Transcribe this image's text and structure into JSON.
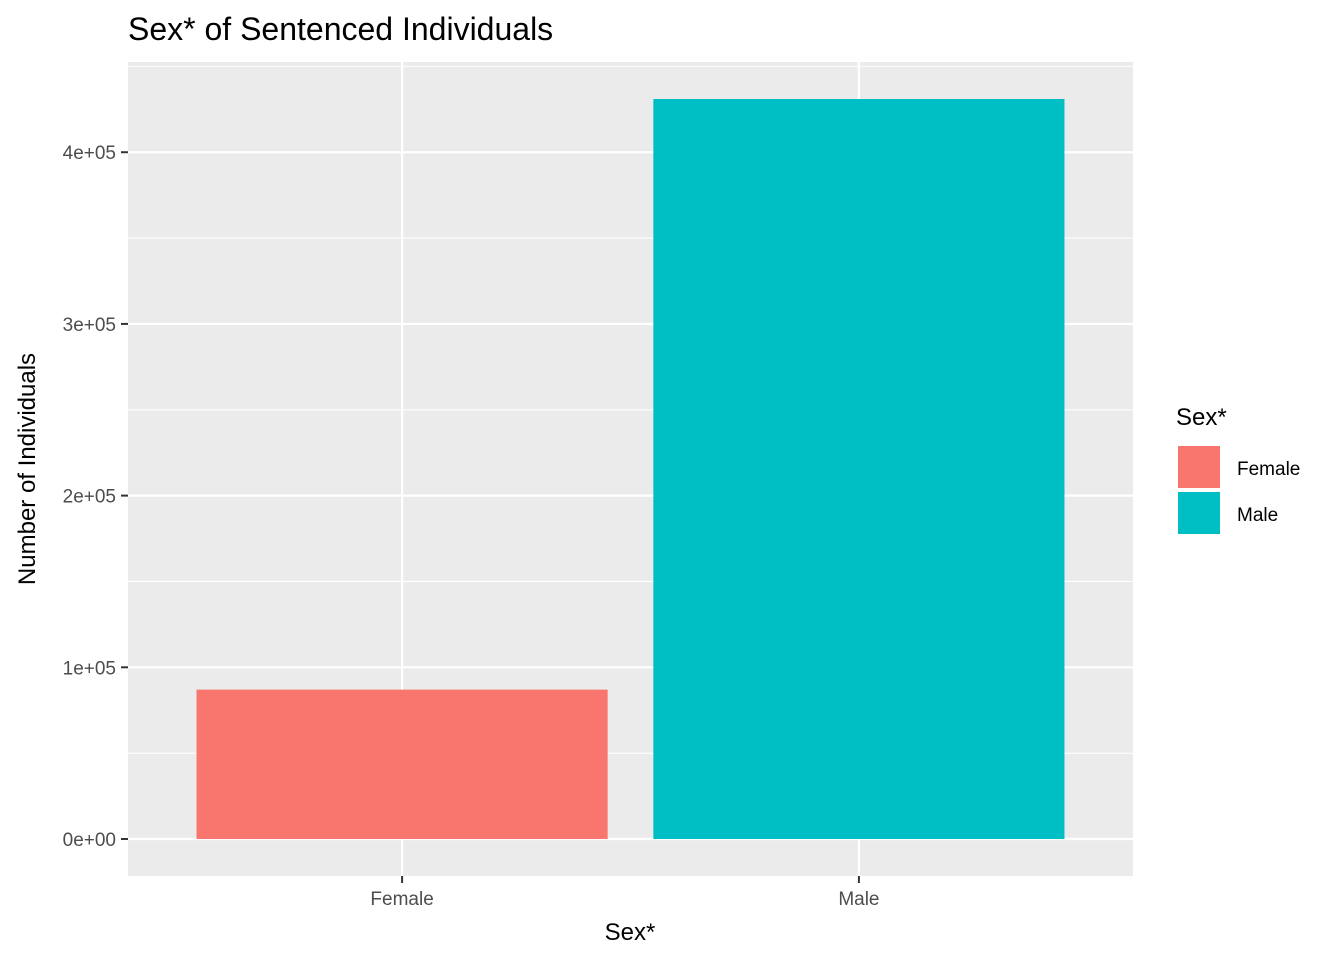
{
  "chart_data": {
    "type": "bar",
    "title": "Sex* of Sentenced Individuals",
    "xlabel": "Sex*",
    "ylabel": "Number of Individuals",
    "categories": [
      "Female",
      "Male"
    ],
    "values": [
      87000,
      431000
    ],
    "ylim": [
      -21550,
      452550
    ],
    "yticks": [
      {
        "value": 0,
        "label": "0e+00"
      },
      {
        "value": 100000,
        "label": "1e+05"
      },
      {
        "value": 200000,
        "label": "2e+05"
      },
      {
        "value": 300000,
        "label": "3e+05"
      },
      {
        "value": 400000,
        "label": "4e+05"
      }
    ],
    "y_minor_ticks": [
      50000,
      150000,
      250000,
      350000,
      450000
    ],
    "colors": [
      "#F8766D",
      "#00BFC4"
    ],
    "panel_background": "#EBEBEB",
    "grid": true,
    "legend": {
      "title": "Sex*",
      "placement": "right",
      "entries": [
        "Female",
        "Male"
      ]
    }
  }
}
